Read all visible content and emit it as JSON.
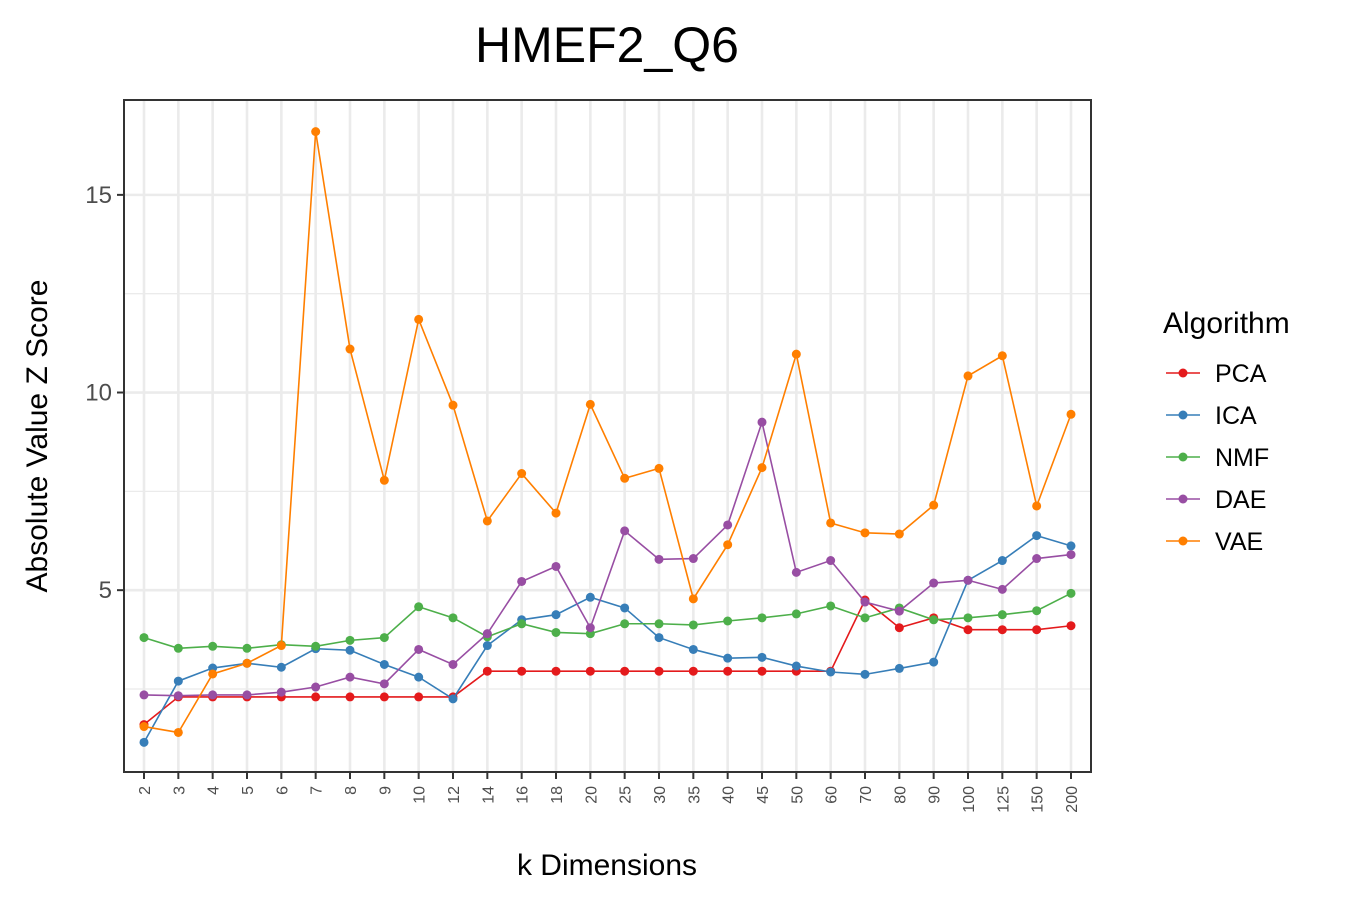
{
  "chart_data": {
    "type": "line",
    "title": "HMEF2_Q6",
    "xlabel": "k Dimensions",
    "ylabel": "Absolute Value Z Score",
    "ylim": [
      0.4,
      17.4
    ],
    "yticks": [
      5,
      10,
      15
    ],
    "grid": true,
    "legend_title": "Algorithm",
    "legend_position": "right",
    "categories": [
      "2",
      "3",
      "4",
      "5",
      "6",
      "7",
      "8",
      "9",
      "10",
      "12",
      "14",
      "16",
      "18",
      "20",
      "25",
      "30",
      "35",
      "40",
      "45",
      "50",
      "60",
      "70",
      "80",
      "90",
      "100",
      "125",
      "150",
      "200"
    ],
    "series": [
      {
        "name": "PCA",
        "color": "#E41A1C",
        "values": [
          1.6,
          2.3,
          2.3,
          2.3,
          2.3,
          2.3,
          2.3,
          2.3,
          2.3,
          2.3,
          2.95,
          2.95,
          2.95,
          2.95,
          2.95,
          2.95,
          2.95,
          2.95,
          2.95,
          2.95,
          2.95,
          4.75,
          4.05,
          4.3,
          4.0,
          4.0,
          4.0,
          4.1
        ]
      },
      {
        "name": "ICA",
        "color": "#377EB8",
        "values": [
          1.15,
          2.7,
          3.03,
          3.15,
          3.05,
          3.52,
          3.48,
          3.12,
          2.8,
          2.25,
          3.6,
          4.25,
          4.38,
          4.82,
          4.55,
          3.8,
          3.5,
          3.28,
          3.3,
          3.08,
          2.93,
          2.87,
          3.02,
          3.18,
          5.25,
          5.75,
          6.38,
          6.12
        ]
      },
      {
        "name": "NMF",
        "color": "#4DAF4A",
        "values": [
          3.8,
          3.53,
          3.58,
          3.53,
          3.62,
          3.58,
          3.73,
          3.8,
          4.58,
          4.3,
          3.82,
          4.15,
          3.93,
          3.9,
          4.15,
          4.15,
          4.12,
          4.22,
          4.3,
          4.4,
          4.6,
          4.3,
          4.55,
          4.25,
          4.3,
          4.38,
          4.48,
          4.92
        ]
      },
      {
        "name": "DAE",
        "color": "#984EA3",
        "values": [
          2.35,
          2.33,
          2.35,
          2.35,
          2.42,
          2.55,
          2.8,
          2.63,
          3.5,
          3.12,
          3.9,
          5.22,
          5.6,
          4.05,
          6.5,
          5.78,
          5.8,
          6.65,
          9.25,
          5.45,
          5.75,
          4.7,
          4.47,
          5.18,
          5.25,
          5.02,
          5.8,
          5.9
        ]
      },
      {
        "name": "VAE",
        "color": "#FF7F00",
        "values": [
          1.55,
          1.4,
          2.88,
          3.15,
          3.6,
          16.6,
          11.1,
          7.78,
          11.85,
          9.68,
          6.75,
          7.95,
          6.95,
          9.7,
          7.83,
          8.08,
          4.78,
          6.15,
          8.1,
          10.97,
          6.7,
          6.45,
          6.42,
          7.15,
          10.42,
          10.93,
          7.13,
          9.45
        ]
      }
    ]
  }
}
